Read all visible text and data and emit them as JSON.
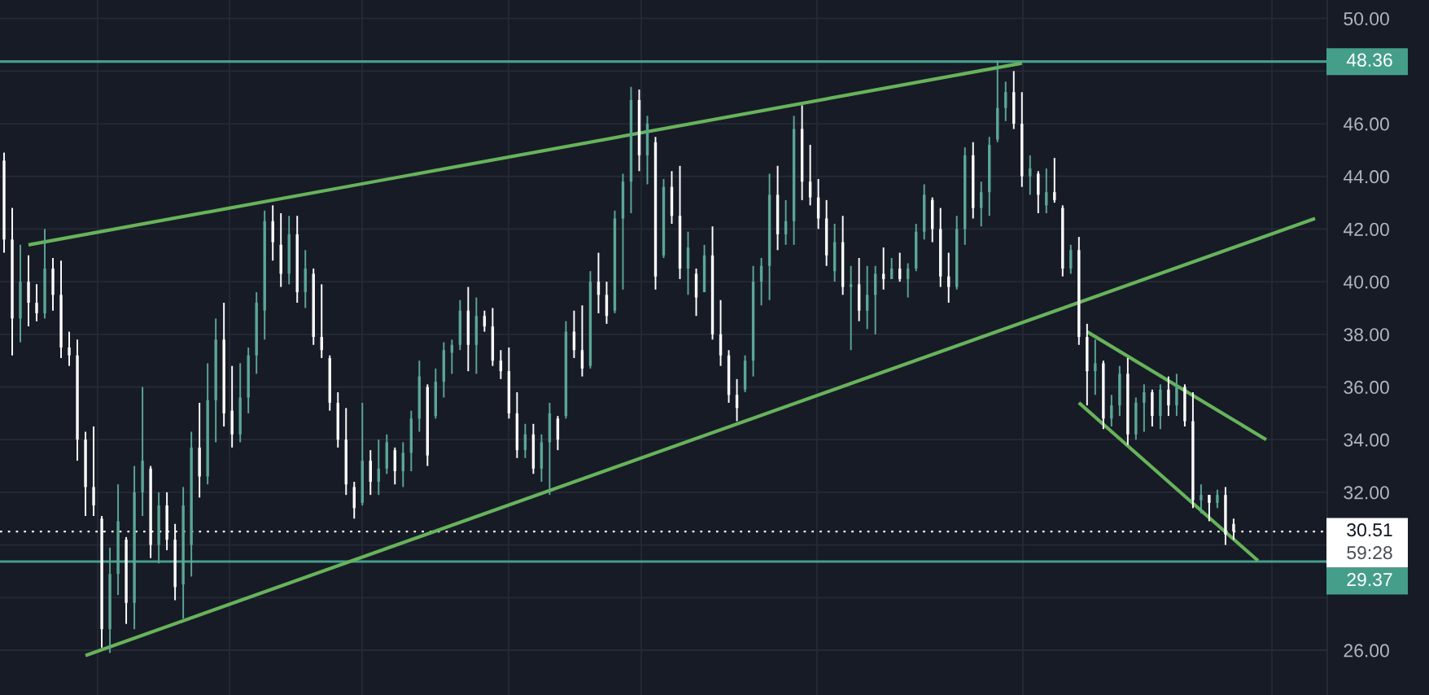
{
  "chart_data": {
    "type": "candlestick",
    "categories": [
      null,
      null,
      null,
      null,
      null,
      null,
      null,
      null,
      null,
      null,
      null,
      null,
      null,
      null,
      null,
      null,
      null,
      null,
      null,
      null,
      null,
      null,
      null,
      null,
      null,
      null,
      null,
      null,
      null,
      null,
      null,
      null,
      null,
      null,
      null,
      null,
      null,
      null,
      null,
      null,
      null,
      null,
      null,
      null,
      null,
      null,
      null,
      null,
      null,
      null,
      null,
      null,
      null,
      null,
      null,
      null,
      null,
      null,
      null,
      null,
      null,
      null,
      null,
      null,
      null,
      null,
      null,
      null,
      null,
      null,
      null,
      null,
      null,
      null,
      null,
      null,
      null,
      null,
      null,
      null,
      null,
      null,
      null,
      null,
      null,
      null,
      null,
      null,
      null,
      null,
      null,
      null,
      null,
      null,
      null,
      null,
      null,
      null,
      null,
      null,
      null,
      null,
      null,
      null,
      null,
      null,
      null,
      null,
      null,
      null,
      null,
      null,
      null,
      null,
      null,
      null,
      null,
      null,
      null,
      null,
      null,
      null,
      null,
      null,
      null,
      null,
      null,
      null,
      null,
      null,
      null,
      null,
      null,
      null,
      null,
      null,
      null,
      null,
      null,
      null,
      null,
      null,
      null,
      null,
      null,
      null,
      null,
      null,
      null,
      null,
      null,
      null,
      null,
      null,
      null,
      null,
      null,
      null,
      null,
      null,
      null,
      null,
      null
    ],
    "ohlc": [
      [
        44.6,
        44.9,
        41.1,
        41.6
      ],
      [
        41.6,
        42.8,
        37.2,
        38.6
      ],
      [
        38.6,
        41.4,
        37.7,
        40.0
      ],
      [
        40.0,
        41.0,
        38.3,
        39.2
      ],
      [
        39.2,
        39.9,
        38.5,
        38.8
      ],
      [
        38.8,
        42.0,
        38.6,
        40.5
      ],
      [
        40.5,
        40.9,
        38.9,
        39.5
      ],
      [
        39.5,
        40.8,
        37.1,
        37.5
      ],
      [
        37.5,
        38.1,
        36.8,
        37.2
      ],
      [
        37.2,
        37.8,
        33.2,
        34.0
      ],
      [
        34.0,
        34.3,
        31.1,
        32.2
      ],
      [
        32.2,
        34.5,
        31.1,
        31.5
      ],
      [
        31.0,
        31.1,
        26.1,
        26.8
      ],
      [
        26.8,
        29.9,
        25.9,
        28.9
      ],
      [
        28.9,
        32.3,
        28.1,
        30.9
      ],
      [
        30.2,
        30.3,
        27.0,
        27.8
      ],
      [
        27.8,
        33.0,
        26.8,
        32.0
      ],
      [
        32.0,
        36.0,
        31.1,
        33.2
      ],
      [
        32.9,
        33.0,
        29.5,
        30.0
      ],
      [
        30.0,
        32.0,
        29.3,
        31.5
      ],
      [
        31.5,
        32.0,
        29.8,
        30.2
      ],
      [
        30.2,
        30.8,
        27.9,
        28.4
      ],
      [
        28.5,
        32.2,
        27.2,
        31.5
      ],
      [
        30.0,
        34.3,
        28.8,
        33.7
      ],
      [
        33.7,
        35.4,
        31.8,
        32.6
      ],
      [
        32.6,
        36.9,
        32.3,
        35.5
      ],
      [
        35.5,
        38.6,
        33.9,
        37.8
      ],
      [
        37.8,
        39.2,
        34.5,
        35.0
      ],
      [
        35.1,
        36.8,
        33.7,
        34.2
      ],
      [
        34.2,
        36.9,
        33.9,
        35.6
      ],
      [
        35.6,
        37.5,
        35.0,
        37.2
      ],
      [
        37.2,
        39.6,
        36.5,
        39.2
      ],
      [
        38.9,
        42.7,
        37.8,
        42.3
      ],
      [
        42.3,
        42.9,
        40.8,
        41.5
      ],
      [
        41.4,
        42.6,
        39.8,
        40.3
      ],
      [
        40.3,
        42.5,
        39.9,
        41.8
      ],
      [
        41.8,
        42.5,
        39.2,
        39.6
      ],
      [
        39.6,
        41.2,
        39.0,
        40.5
      ],
      [
        40.3,
        40.5,
        37.6,
        37.9
      ],
      [
        37.9,
        39.9,
        37.1,
        37.4
      ],
      [
        37.1,
        37.2,
        35.1,
        35.4
      ],
      [
        35.4,
        35.8,
        33.7,
        34.0
      ],
      [
        34.0,
        35.2,
        31.9,
        32.3
      ],
      [
        32.2,
        32.4,
        31.0,
        31.4
      ],
      [
        31.6,
        35.4,
        31.5,
        33.2
      ],
      [
        33.2,
        33.6,
        31.9,
        32.4
      ],
      [
        32.4,
        34.0,
        31.9,
        32.9
      ],
      [
        32.9,
        34.2,
        32.7,
        33.9
      ],
      [
        33.6,
        33.7,
        32.3,
        32.8
      ],
      [
        32.8,
        33.9,
        32.2,
        33.5
      ],
      [
        33.5,
        35.1,
        32.8,
        34.8
      ],
      [
        34.8,
        37.0,
        34.3,
        36.4
      ],
      [
        36.0,
        36.1,
        33.0,
        33.4
      ],
      [
        34.9,
        36.7,
        34.8,
        36.2
      ],
      [
        36.2,
        37.7,
        35.6,
        37.4
      ],
      [
        37.3,
        37.8,
        36.5,
        37.6
      ],
      [
        37.6,
        39.3,
        37.4,
        38.9
      ],
      [
        38.9,
        39.8,
        36.6,
        37.6
      ],
      [
        37.6,
        39.4,
        36.5,
        38.7
      ],
      [
        38.7,
        38.9,
        38.1,
        38.3
      ],
      [
        38.3,
        39.0,
        36.8,
        37.0
      ],
      [
        37.0,
        37.4,
        36.3,
        36.6
      ],
      [
        36.6,
        37.5,
        34.8,
        35.0
      ],
      [
        35.0,
        35.8,
        33.3,
        33.6
      ],
      [
        33.6,
        34.6,
        33.3,
        34.2
      ],
      [
        34.2,
        34.6,
        32.7,
        32.9
      ],
      [
        32.9,
        34.2,
        32.4,
        33.9
      ],
      [
        33.9,
        35.4,
        31.9,
        35.0
      ],
      [
        34.8,
        34.9,
        33.6,
        34.0
      ],
      [
        34.9,
        38.5,
        34.8,
        38.1
      ],
      [
        38.1,
        38.9,
        37.1,
        37.4
      ],
      [
        37.4,
        39.1,
        36.4,
        36.7
      ],
      [
        36.8,
        40.4,
        36.7,
        40.0
      ],
      [
        40.0,
        41.1,
        38.8,
        39.5
      ],
      [
        39.5,
        40.0,
        38.4,
        38.7
      ],
      [
        38.9,
        42.7,
        38.8,
        42.4
      ],
      [
        42.4,
        44.1,
        39.7,
        43.8
      ],
      [
        43.8,
        47.4,
        42.6,
        46.9
      ],
      [
        46.9,
        47.3,
        44.2,
        44.8
      ],
      [
        44.8,
        46.3,
        43.7,
        46.0
      ],
      [
        45.3,
        45.5,
        39.7,
        40.2
      ],
      [
        41.0,
        43.9,
        40.9,
        43.6
      ],
      [
        43.6,
        44.2,
        42.2,
        42.5
      ],
      [
        42.5,
        44.4,
        40.1,
        40.5
      ],
      [
        40.5,
        41.9,
        39.5,
        41.3
      ],
      [
        40.3,
        40.5,
        38.7,
        39.4
      ],
      [
        39.6,
        41.4,
        39.6,
        41.0
      ],
      [
        41.0,
        42.1,
        37.8,
        38.0
      ],
      [
        38.0,
        39.3,
        36.8,
        37.2
      ],
      [
        37.2,
        37.4,
        35.4,
        35.7
      ],
      [
        35.7,
        36.3,
        34.7,
        35.2
      ],
      [
        35.9,
        37.2,
        35.8,
        37.0
      ],
      [
        37.0,
        40.6,
        36.4,
        40.0
      ],
      [
        40.0,
        40.9,
        39.1,
        40.6
      ],
      [
        40.6,
        44.1,
        39.3,
        43.3
      ],
      [
        43.3,
        44.4,
        41.2,
        41.8
      ],
      [
        41.8,
        43.1,
        41.4,
        42.3
      ],
      [
        42.3,
        46.3,
        41.4,
        45.8
      ],
      [
        45.8,
        46.7,
        43.1,
        43.8
      ],
      [
        43.8,
        45.2,
        42.9,
        43.2
      ],
      [
        43.2,
        43.9,
        42.0,
        42.4
      ],
      [
        42.4,
        43.1,
        40.6,
        41.0
      ],
      [
        40.4,
        42.2,
        40.0,
        41.5
      ],
      [
        41.5,
        42.5,
        39.5,
        39.8
      ],
      [
        39.8,
        40.6,
        37.4,
        39.9
      ],
      [
        39.9,
        40.9,
        38.5,
        38.9
      ],
      [
        38.9,
        40.6,
        38.2,
        39.5
      ],
      [
        39.5,
        40.6,
        38.0,
        40.3
      ],
      [
        40.3,
        41.3,
        39.7,
        40.1
      ],
      [
        40.1,
        40.9,
        40.1,
        40.5
      ],
      [
        40.5,
        41.1,
        40.0,
        40.1
      ],
      [
        40.1,
        40.7,
        39.4,
        40.5
      ],
      [
        40.5,
        42.2,
        40.4,
        41.9
      ],
      [
        41.9,
        43.7,
        41.6,
        43.3
      ],
      [
        43.1,
        43.2,
        41.5,
        42.0
      ],
      [
        42.0,
        42.8,
        39.8,
        40.2
      ],
      [
        40.2,
        41.1,
        39.2,
        39.8
      ],
      [
        39.8,
        42.5,
        39.7,
        42.0
      ],
      [
        42.0,
        45.1,
        41.4,
        44.8
      ],
      [
        44.8,
        45.3,
        42.4,
        42.8
      ],
      [
        42.8,
        43.8,
        42.1,
        43.4
      ],
      [
        43.4,
        45.5,
        42.5,
        45.2
      ],
      [
        45.4,
        48.4,
        45.3,
        46.6
      ],
      [
        46.6,
        47.6,
        46.1,
        47.2
      ],
      [
        47.2,
        48.0,
        45.8,
        46.0
      ],
      [
        46.0,
        47.2,
        43.6,
        44.0
      ],
      [
        44.0,
        44.8,
        43.3,
        44.3
      ],
      [
        44.1,
        44.2,
        42.6,
        43.3
      ],
      [
        42.9,
        44.3,
        42.6,
        43.4
      ],
      [
        43.4,
        44.7,
        43.0,
        43.1
      ],
      [
        42.8,
        42.9,
        40.2,
        40.5
      ],
      [
        40.5,
        41.4,
        40.3,
        41.2
      ],
      [
        41.2,
        41.7,
        37.6,
        37.9
      ],
      [
        37.9,
        38.4,
        35.3,
        36.6
      ],
      [
        36.6,
        37.8,
        35.7,
        36.9
      ],
      [
        36.9,
        37.0,
        34.4,
        34.8
      ],
      [
        34.8,
        35.7,
        34.5,
        35.3
      ],
      [
        35.3,
        36.8,
        34.9,
        36.5
      ],
      [
        36.5,
        37.1,
        33.8,
        34.2
      ],
      [
        34.2,
        35.6,
        34.0,
        35.4
      ],
      [
        35.4,
        36.1,
        34.3,
        35.8
      ],
      [
        35.8,
        35.9,
        34.5,
        34.9
      ],
      [
        34.9,
        36.1,
        34.4,
        35.9
      ],
      [
        35.9,
        36.4,
        34.9,
        35.3
      ],
      [
        35.3,
        36.5,
        34.9,
        36.0
      ],
      [
        36.0,
        36.1,
        34.5,
        34.7
      ],
      [
        34.7,
        35.8,
        31.4,
        31.7
      ],
      [
        31.7,
        32.3,
        31.2,
        31.9
      ],
      [
        31.9,
        31.9,
        30.9,
        31.6
      ],
      [
        31.6,
        32.1,
        31.4,
        31.9
      ],
      [
        31.9,
        32.2,
        30.0,
        30.4
      ],
      [
        30.8,
        31.0,
        30.2,
        30.51
      ],
      null,
      null,
      null,
      null,
      null,
      null,
      null,
      null,
      null,
      null,
      null
    ],
    "colors": [
      "#ffffff",
      "#ffffff",
      "#5ba696",
      "#ffffff",
      "#ffffff",
      "#5ba696",
      "#ffffff",
      "#ffffff",
      "#ffffff",
      "#ffffff",
      "#ffffff",
      "#ffffff",
      "#ffffff",
      "#5ba696",
      "#5ba696",
      "#ffffff",
      "#5ba696",
      "#5ba696",
      "#ffffff",
      "#5ba696",
      "#ffffff",
      "#ffffff",
      "#5ba696",
      "#5ba696",
      "#ffffff",
      "#5ba696",
      "#5ba696",
      "#ffffff",
      "#ffffff",
      "#5ba696",
      "#5ba696",
      "#5ba696",
      "#5ba696",
      "#ffffff",
      "#ffffff",
      "#5ba696",
      "#ffffff",
      "#5ba696",
      "#ffffff",
      "#ffffff",
      "#ffffff",
      "#ffffff",
      "#ffffff",
      "#ffffff",
      "#5ba696",
      "#ffffff",
      "#5ba696",
      "#5ba696",
      "#ffffff",
      "#5ba696",
      "#5ba696",
      "#5ba696",
      "#ffffff",
      "#5ba696",
      "#5ba696",
      "#5ba696",
      "#5ba696",
      "#ffffff",
      "#5ba696",
      "#ffffff",
      "#ffffff",
      "#ffffff",
      "#ffffff",
      "#ffffff",
      "#5ba696",
      "#ffffff",
      "#5ba696",
      "#5ba696",
      "#ffffff",
      "#5ba696",
      "#ffffff",
      "#ffffff",
      "#5ba696",
      "#ffffff",
      "#ffffff",
      "#5ba696",
      "#5ba696",
      "#5ba696",
      "#ffffff",
      "#5ba696",
      "#ffffff",
      "#5ba696",
      "#ffffff",
      "#ffffff",
      "#5ba696",
      "#ffffff",
      "#5ba696",
      "#ffffff",
      "#ffffff",
      "#ffffff",
      "#ffffff",
      "#5ba696",
      "#5ba696",
      "#5ba696",
      "#5ba696",
      "#ffffff",
      "#5ba696",
      "#5ba696",
      "#ffffff",
      "#ffffff",
      "#ffffff",
      "#ffffff",
      "#5ba696",
      "#ffffff",
      "#5ba696",
      "#ffffff",
      "#5ba696",
      "#5ba696",
      "#ffffff",
      "#5ba696",
      "#ffffff",
      "#5ba696",
      "#5ba696",
      "#5ba696",
      "#ffffff",
      "#ffffff",
      "#ffffff",
      "#5ba696",
      "#5ba696",
      "#ffffff",
      "#5ba696",
      "#5ba696",
      "#5ba696",
      "#5ba696",
      "#ffffff",
      "#ffffff",
      "#5ba696",
      "#ffffff",
      "#5ba696",
      "#ffffff",
      "#ffffff",
      "#5ba696",
      "#ffffff",
      "#ffffff",
      "#5ba696",
      "#ffffff",
      "#5ba696",
      "#5ba696",
      "#ffffff",
      "#5ba696",
      "#5ba696",
      "#ffffff",
      "#5ba696",
      "#ffffff",
      "#5ba696",
      "#ffffff",
      "#ffffff",
      "#5ba696",
      "#ffffff",
      "#5ba696",
      "#ffffff",
      "#ffffff",
      null,
      null,
      null,
      null,
      null,
      null,
      null,
      null,
      null,
      null,
      null
    ],
    "series": [
      {
        "type": "line",
        "color": "#67b35b",
        "values": [
          null,
          null,
          null,
          41.4,
          null,
          null,
          null,
          null,
          null,
          null,
          null,
          null,
          null,
          null,
          null,
          null,
          null,
          null,
          null,
          null,
          null,
          null,
          null,
          null,
          null,
          null,
          null,
          null,
          null,
          null,
          null,
          null,
          null,
          null,
          null,
          null,
          null,
          null,
          null,
          null,
          null,
          null,
          null,
          null,
          null,
          null,
          null,
          null,
          null,
          null,
          null,
          null,
          null,
          null,
          null,
          null,
          null,
          null,
          null,
          null,
          null,
          null,
          null,
          null,
          null,
          null,
          null,
          null,
          null,
          null,
          null,
          null,
          null,
          null,
          null,
          null,
          null,
          null,
          null,
          null,
          null,
          null,
          null,
          null,
          null,
          null,
          null,
          null,
          null,
          null,
          null,
          null,
          null,
          null,
          null,
          null,
          null,
          null,
          null,
          null,
          null,
          null,
          null,
          null,
          null,
          null,
          null,
          null,
          null,
          null,
          null,
          null,
          null,
          null,
          null,
          null,
          null,
          null,
          null,
          null,
          null,
          null,
          null,
          null,
          null,
          48.3,
          null,
          null,
          null,
          null,
          null,
          null,
          null,
          null,
          null,
          null,
          null,
          null,
          null,
          null,
          null,
          null,
          null,
          null,
          null,
          null,
          null,
          null,
          null,
          null,
          null,
          null,
          null,
          null,
          null,
          null,
          null,
          null,
          null,
          null,
          null,
          null,
          null
        ]
      },
      {
        "type": "line",
        "color": "#67b35b",
        "values": [
          null,
          null,
          null,
          null,
          null,
          null,
          null,
          null,
          null,
          null,
          25.8,
          null,
          null,
          null,
          null,
          null,
          null,
          null,
          null,
          null,
          null,
          null,
          null,
          null,
          null,
          null,
          null,
          null,
          null,
          null,
          null,
          null,
          null,
          null,
          null,
          null,
          null,
          null,
          null,
          null,
          null,
          null,
          null,
          null,
          null,
          null,
          null,
          null,
          null,
          null,
          null,
          null,
          null,
          null,
          null,
          null,
          null,
          null,
          null,
          null,
          null,
          null,
          null,
          null,
          null,
          null,
          null,
          null,
          null,
          null,
          null,
          null,
          null,
          null,
          null,
          null,
          null,
          null,
          null,
          null,
          null,
          null,
          null,
          null,
          null,
          null,
          null,
          null,
          null,
          null,
          null,
          null,
          null,
          null,
          null,
          null,
          null,
          null,
          null,
          null,
          null,
          null,
          null,
          null,
          null,
          null,
          null,
          null,
          null,
          null,
          null,
          null,
          null,
          null,
          null,
          null,
          null,
          null,
          null,
          null,
          null,
          null,
          null,
          null,
          null,
          null,
          null,
          null,
          null,
          null,
          null,
          null,
          null,
          null,
          null,
          null,
          null,
          null,
          null,
          null,
          null,
          null,
          null,
          null,
          null,
          null,
          null,
          null,
          null,
          null,
          null,
          null,
          null,
          null,
          null,
          null,
          null,
          null,
          null,
          null,
          null,
          42.4,
          null
        ]
      },
      {
        "type": "line",
        "color": "#67b35b",
        "values": [
          null,
          null,
          null,
          null,
          null,
          null,
          null,
          null,
          null,
          null,
          null,
          null,
          null,
          null,
          null,
          null,
          null,
          null,
          null,
          null,
          null,
          null,
          null,
          null,
          null,
          null,
          null,
          null,
          null,
          null,
          null,
          null,
          null,
          null,
          null,
          null,
          null,
          null,
          null,
          null,
          null,
          null,
          null,
          null,
          null,
          null,
          null,
          null,
          null,
          null,
          null,
          null,
          null,
          null,
          null,
          null,
          null,
          null,
          null,
          null,
          null,
          null,
          null,
          null,
          null,
          null,
          null,
          null,
          null,
          null,
          null,
          null,
          null,
          null,
          null,
          null,
          null,
          null,
          null,
          null,
          null,
          null,
          null,
          null,
          null,
          null,
          null,
          null,
          null,
          null,
          null,
          null,
          null,
          null,
          null,
          null,
          null,
          null,
          null,
          null,
          null,
          null,
          null,
          null,
          null,
          null,
          null,
          null,
          null,
          null,
          null,
          null,
          null,
          null,
          null,
          null,
          null,
          null,
          null,
          null,
          null,
          null,
          null,
          null,
          null,
          null,
          null,
          null,
          null,
          null,
          null,
          null,
          null,
          38.1,
          null,
          null,
          null,
          null,
          null,
          null,
          null,
          null,
          null,
          null,
          null,
          null,
          null,
          null,
          null,
          null,
          null,
          null,
          null,
          null,
          null,
          34.0,
          null,
          null,
          null,
          null,
          null,
          null,
          null
        ]
      },
      {
        "type": "line",
        "color": "#67b35b",
        "values": [
          null,
          null,
          null,
          null,
          null,
          null,
          null,
          null,
          null,
          null,
          null,
          null,
          null,
          null,
          null,
          null,
          null,
          null,
          null,
          null,
          null,
          null,
          null,
          null,
          null,
          null,
          null,
          null,
          null,
          null,
          null,
          null,
          null,
          null,
          null,
          null,
          null,
          null,
          null,
          null,
          null,
          null,
          null,
          null,
          null,
          null,
          null,
          null,
          null,
          null,
          null,
          null,
          null,
          null,
          null,
          null,
          null,
          null,
          null,
          null,
          null,
          null,
          null,
          null,
          null,
          null,
          null,
          null,
          null,
          null,
          null,
          null,
          null,
          null,
          null,
          null,
          null,
          null,
          null,
          null,
          null,
          null,
          null,
          null,
          null,
          null,
          null,
          null,
          null,
          null,
          null,
          null,
          null,
          null,
          null,
          null,
          null,
          null,
          null,
          null,
          null,
          null,
          null,
          null,
          null,
          null,
          null,
          null,
          null,
          null,
          null,
          null,
          null,
          null,
          null,
          null,
          null,
          null,
          null,
          null,
          null,
          null,
          null,
          null,
          null,
          null,
          null,
          null,
          null,
          null,
          null,
          null,
          35.4,
          null,
          null,
          null,
          null,
          null,
          null,
          null,
          null,
          null,
          null,
          null,
          null,
          null,
          null,
          null,
          null,
          null,
          null,
          null,
          null,
          null,
          29.4,
          null,
          null,
          null,
          null,
          null,
          null,
          null,
          null
        ]
      }
    ],
    "ylim": [
      24.3,
      50.7
    ],
    "yticks": [
      {
        "value": 26,
        "label": "26.00"
      },
      {
        "value": 28,
        "label": null
      },
      {
        "value": 30,
        "label": null
      },
      {
        "value": 32,
        "label": "32.00"
      },
      {
        "value": 34,
        "label": "34.00"
      },
      {
        "value": 36,
        "label": "36.00"
      },
      {
        "value": 38,
        "label": "38.00"
      },
      {
        "value": 40,
        "label": "40.00"
      },
      {
        "value": 42,
        "label": "42.00"
      },
      {
        "value": 44,
        "label": "44.00"
      },
      {
        "value": 46,
        "label": "46.00"
      },
      {
        "value": 48,
        "label": null
      },
      {
        "value": 50,
        "label": "50.00"
      }
    ],
    "ref_lines": [
      {
        "axis": "y",
        "value": 48.36,
        "label": "48.36",
        "color": "#459e8a",
        "line_style": "solid"
      },
      {
        "axis": "y",
        "value": 30.51,
        "label": "30.51",
        "color": "#ffffff",
        "line_style": "dotted"
      },
      {
        "axis": "y",
        "value": 29.37,
        "label": "29.37",
        "color": "#459e8a",
        "line_style": "solid"
      }
    ],
    "annotations": [
      "59:28"
    ],
    "grid": true,
    "tick_labels": "y"
  }
}
